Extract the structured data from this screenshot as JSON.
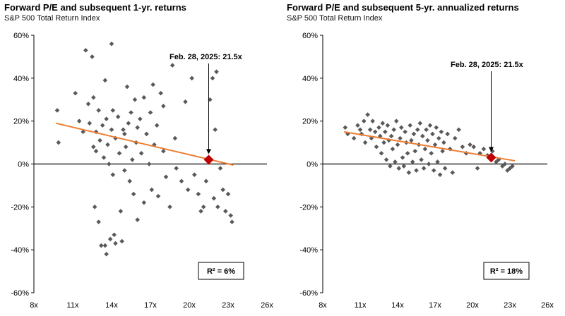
{
  "chart_data": [
    {
      "type": "scatter",
      "title": "Forward P/E and subsequent 1-yr. returns",
      "subtitle": "S&P 500 Total Return Index",
      "xlim": [
        8,
        26
      ],
      "ylim": [
        -60,
        60
      ],
      "x_ticks": [
        "8x",
        "11x",
        "14x",
        "17x",
        "20x",
        "23x",
        "26x"
      ],
      "y_ticks": [
        "-60%",
        "-40%",
        "-20%",
        "0%",
        "20%",
        "40%",
        "60%"
      ],
      "marker_color": "#595959",
      "trend_color": "#ED7D31",
      "highlight_color": "#C00000",
      "trend_line": [
        [
          9.7,
          19
        ],
        [
          23.4,
          -0.5
        ]
      ],
      "highlight": {
        "x": 21.5,
        "y": 2,
        "label": "Feb. 28, 2025:  21.5x"
      },
      "r2_label": "R² = 6%",
      "points": [
        [
          9.8,
          25
        ],
        [
          9.9,
          10
        ],
        [
          11.2,
          33
        ],
        [
          11.5,
          20
        ],
        [
          11.8,
          15
        ],
        [
          12.0,
          53
        ],
        [
          12.2,
          28
        ],
        [
          12.3,
          19
        ],
        [
          12.5,
          50
        ],
        [
          12.6,
          31
        ],
        [
          12.6,
          8
        ],
        [
          12.7,
          -20
        ],
        [
          12.8,
          15
        ],
        [
          12.8,
          6
        ],
        [
          13.0,
          25
        ],
        [
          13.0,
          -27
        ],
        [
          13.1,
          11
        ],
        [
          13.2,
          -38
        ],
        [
          13.3,
          18
        ],
        [
          13.4,
          3
        ],
        [
          13.5,
          39
        ],
        [
          13.5,
          -38
        ],
        [
          13.6,
          21
        ],
        [
          13.6,
          -42
        ],
        [
          13.7,
          9
        ],
        [
          13.8,
          0
        ],
        [
          13.9,
          -35
        ],
        [
          14.0,
          56
        ],
        [
          14.0,
          16
        ],
        [
          14.1,
          -5
        ],
        [
          14.1,
          25
        ],
        [
          14.2,
          -33
        ],
        [
          14.3,
          12
        ],
        [
          14.3,
          -37
        ],
        [
          14.5,
          22
        ],
        [
          14.6,
          5
        ],
        [
          14.7,
          -22
        ],
        [
          14.8,
          -36
        ],
        [
          14.9,
          16
        ],
        [
          15.0,
          14
        ],
        [
          15.0,
          -3
        ],
        [
          15.1,
          8
        ],
        [
          15.2,
          36
        ],
        [
          15.3,
          19
        ],
        [
          15.4,
          -8
        ],
        [
          15.5,
          24
        ],
        [
          15.6,
          2
        ],
        [
          15.7,
          -14
        ],
        [
          15.8,
          30
        ],
        [
          15.9,
          10
        ],
        [
          16.0,
          -26
        ],
        [
          16.0,
          17
        ],
        [
          16.2,
          21
        ],
        [
          16.3,
          5
        ],
        [
          16.5,
          -18
        ],
        [
          16.5,
          31
        ],
        [
          16.7,
          14
        ],
        [
          16.9,
          0
        ],
        [
          17.0,
          24
        ],
        [
          17.1,
          -12
        ],
        [
          17.2,
          37
        ],
        [
          17.3,
          9
        ],
        [
          17.5,
          18
        ],
        [
          17.6,
          -15
        ],
        [
          17.8,
          33
        ],
        [
          18.0,
          6
        ],
        [
          18.0,
          27
        ],
        [
          18.2,
          -6
        ],
        [
          18.5,
          -20
        ],
        [
          18.7,
          46
        ],
        [
          18.9,
          12
        ],
        [
          19.0,
          -2
        ],
        [
          19.4,
          -8
        ],
        [
          19.7,
          29
        ],
        [
          19.9,
          -12
        ],
        [
          20.2,
          40
        ],
        [
          20.4,
          -5
        ],
        [
          20.7,
          -14
        ],
        [
          20.9,
          -22
        ],
        [
          21.1,
          -20
        ],
        [
          21.3,
          -8
        ],
        [
          21.6,
          30
        ],
        [
          21.8,
          40
        ],
        [
          21.9,
          -16
        ],
        [
          22.0,
          16
        ],
        [
          22.1,
          43
        ],
        [
          22.2,
          -20
        ],
        [
          22.4,
          -2
        ],
        [
          22.6,
          -12
        ],
        [
          22.8,
          -22
        ],
        [
          23.0,
          -14
        ],
        [
          23.2,
          -24
        ],
        [
          23.3,
          -27
        ]
      ]
    },
    {
      "type": "scatter",
      "title": "Forward P/E and subsequent 5-yr. annualized returns",
      "subtitle": "S&P 500 Total Return Index",
      "xlim": [
        8,
        26
      ],
      "ylim": [
        -60,
        60
      ],
      "x_ticks": [
        "8x",
        "11x",
        "14x",
        "17x",
        "20x",
        "23x",
        "26x"
      ],
      "y_ticks": [
        "-60%",
        "-40%",
        "-20%",
        "0%",
        "20%",
        "40%",
        "60%"
      ],
      "marker_color": "#595959",
      "trend_color": "#ED7D31",
      "highlight_color": "#C00000",
      "trend_line": [
        [
          9.7,
          15
        ],
        [
          23.4,
          1.5
        ]
      ],
      "highlight": {
        "x": 21.5,
        "y": 3,
        "label": "Feb. 28, 2025:  21.5x"
      },
      "r2_label": "R² = 18%",
      "points": [
        [
          9.8,
          17
        ],
        [
          10.0,
          14
        ],
        [
          10.5,
          12
        ],
        [
          10.8,
          18
        ],
        [
          11.0,
          16
        ],
        [
          11.1,
          14
        ],
        [
          11.3,
          20
        ],
        [
          11.4,
          10
        ],
        [
          11.6,
          23
        ],
        [
          11.8,
          16
        ],
        [
          11.9,
          12
        ],
        [
          12.0,
          20
        ],
        [
          12.2,
          15
        ],
        [
          12.3,
          8
        ],
        [
          12.5,
          17
        ],
        [
          12.6,
          13
        ],
        [
          12.7,
          5
        ],
        [
          12.8,
          19
        ],
        [
          12.9,
          10
        ],
        [
          13.0,
          15
        ],
        [
          13.1,
          2
        ],
        [
          13.2,
          18
        ],
        [
          13.3,
          11
        ],
        [
          13.4,
          -1
        ],
        [
          13.5,
          13
        ],
        [
          13.6,
          7
        ],
        [
          13.7,
          16
        ],
        [
          13.8,
          1
        ],
        [
          13.9,
          20
        ],
        [
          14.0,
          9
        ],
        [
          14.1,
          -2
        ],
        [
          14.2,
          12
        ],
        [
          14.3,
          17
        ],
        [
          14.4,
          3
        ],
        [
          14.5,
          -1
        ],
        [
          14.6,
          15
        ],
        [
          14.7,
          10
        ],
        [
          14.8,
          5
        ],
        [
          14.9,
          -4
        ],
        [
          15.0,
          18
        ],
        [
          15.1,
          11
        ],
        [
          15.2,
          1
        ],
        [
          15.3,
          14
        ],
        [
          15.4,
          6
        ],
        [
          15.5,
          -3
        ],
        [
          15.6,
          16
        ],
        [
          15.7,
          9
        ],
        [
          15.8,
          19
        ],
        [
          15.9,
          2
        ],
        [
          16.0,
          13
        ],
        [
          16.1,
          -2
        ],
        [
          16.2,
          7
        ],
        [
          16.3,
          16
        ],
        [
          16.4,
          11
        ],
        [
          16.5,
          0
        ],
        [
          16.6,
          18
        ],
        [
          16.7,
          5
        ],
        [
          16.8,
          14
        ],
        [
          16.9,
          -3
        ],
        [
          17.0,
          9
        ],
        [
          17.1,
          17
        ],
        [
          17.2,
          1
        ],
        [
          17.3,
          12
        ],
        [
          17.4,
          -5
        ],
        [
          17.5,
          15
        ],
        [
          17.6,
          6
        ],
        [
          17.7,
          10
        ],
        [
          17.8,
          -2
        ],
        [
          18.0,
          14
        ],
        [
          18.2,
          7
        ],
        [
          18.4,
          -4
        ],
        [
          18.6,
          12
        ],
        [
          18.9,
          16
        ],
        [
          19.2,
          8
        ],
        [
          19.5,
          5
        ],
        [
          19.8,
          9
        ],
        [
          20.1,
          8
        ],
        [
          20.4,
          -2
        ],
        [
          20.6,
          5
        ],
        [
          20.9,
          7
        ],
        [
          21.2,
          4
        ],
        [
          21.6,
          6
        ],
        [
          21.9,
          1
        ],
        [
          22.1,
          2
        ],
        [
          22.4,
          -1
        ],
        [
          22.6,
          0
        ],
        [
          22.8,
          -3
        ],
        [
          23.0,
          -2
        ],
        [
          23.2,
          -1
        ]
      ]
    }
  ]
}
